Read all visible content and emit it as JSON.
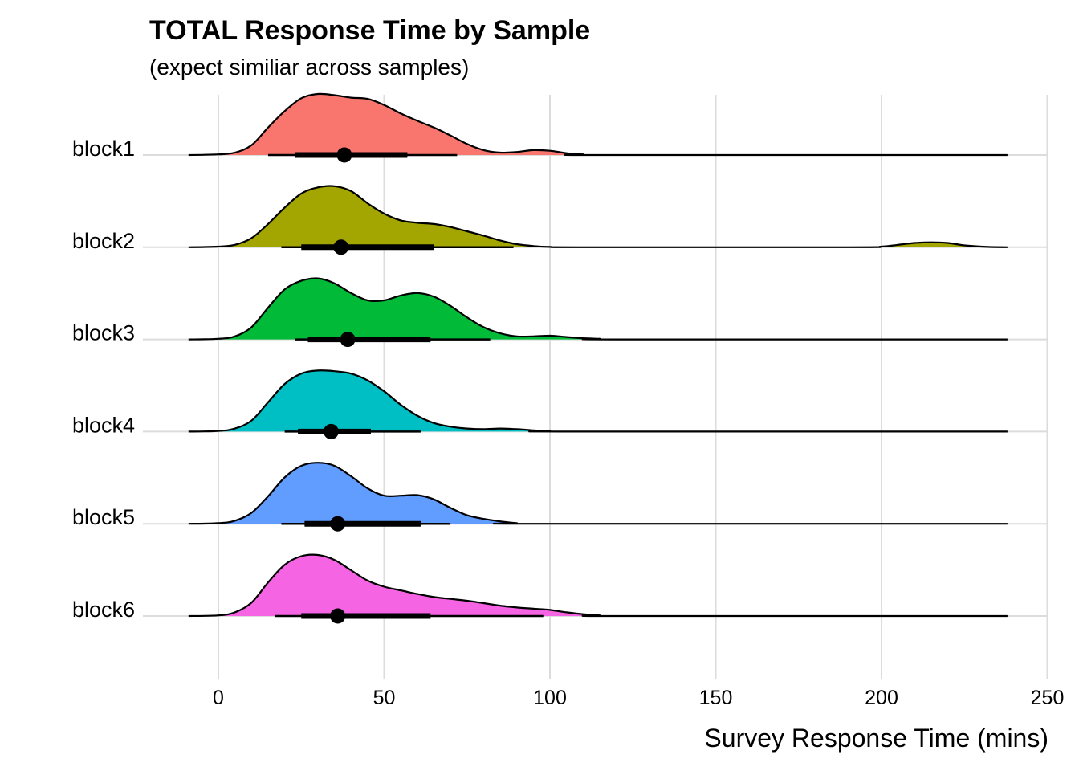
{
  "chart_data": {
    "type": "ridgeline",
    "title": "TOTAL Response Time by Sample",
    "subtitle": "(expect similiar across samples)",
    "xlabel": "Survey Response Time (mins)",
    "ylabel": "",
    "xlim": [
      -9,
      250
    ],
    "x_ticks": [
      0,
      50,
      100,
      150,
      200,
      250
    ],
    "x_tick_labels": [
      "0",
      "50",
      "100",
      "150",
      "200",
      "250"
    ],
    "grid": true,
    "legend": "none",
    "range_extent": [
      -9,
      238
    ],
    "series": [
      {
        "name": "block1",
        "color": "#F8766D",
        "density": [
          [
            -9,
            0
          ],
          [
            0,
            0.01
          ],
          [
            5,
            0.04
          ],
          [
            10,
            0.16
          ],
          [
            15,
            0.45
          ],
          [
            20,
            0.72
          ],
          [
            25,
            0.93
          ],
          [
            30,
            1.0
          ],
          [
            35,
            0.98
          ],
          [
            40,
            0.94
          ],
          [
            45,
            0.92
          ],
          [
            50,
            0.82
          ],
          [
            55,
            0.68
          ],
          [
            60,
            0.56
          ],
          [
            65,
            0.45
          ],
          [
            70,
            0.32
          ],
          [
            75,
            0.18
          ],
          [
            80,
            0.08
          ],
          [
            85,
            0.04
          ],
          [
            90,
            0.05
          ],
          [
            95,
            0.08
          ],
          [
            100,
            0.07
          ],
          [
            105,
            0.03
          ],
          [
            110,
            0.01
          ],
          [
            115,
            0
          ],
          [
            238,
            0
          ]
        ],
        "median": 38,
        "inner": [
          23,
          57
        ],
        "outer": [
          15,
          72
        ]
      },
      {
        "name": "block2",
        "color": "#A3A500",
        "density": [
          [
            -9,
            0
          ],
          [
            0,
            0.01
          ],
          [
            5,
            0.04
          ],
          [
            10,
            0.15
          ],
          [
            15,
            0.38
          ],
          [
            20,
            0.65
          ],
          [
            25,
            0.88
          ],
          [
            30,
            0.98
          ],
          [
            35,
            1.0
          ],
          [
            40,
            0.92
          ],
          [
            45,
            0.72
          ],
          [
            50,
            0.55
          ],
          [
            55,
            0.44
          ],
          [
            60,
            0.4
          ],
          [
            65,
            0.38
          ],
          [
            70,
            0.33
          ],
          [
            75,
            0.26
          ],
          [
            80,
            0.19
          ],
          [
            85,
            0.11
          ],
          [
            90,
            0.05
          ],
          [
            95,
            0.02
          ],
          [
            100,
            0.005
          ],
          [
            110,
            0
          ],
          [
            190,
            0
          ],
          [
            200,
            0.01
          ],
          [
            205,
            0.04
          ],
          [
            210,
            0.07
          ],
          [
            215,
            0.08
          ],
          [
            220,
            0.07
          ],
          [
            225,
            0.03
          ],
          [
            232,
            0.005
          ],
          [
            238,
            0
          ]
        ],
        "median": 37,
        "inner": [
          25,
          65
        ],
        "outer": [
          19,
          89
        ]
      },
      {
        "name": "block3",
        "color": "#00BA38",
        "density": [
          [
            -9,
            0
          ],
          [
            0,
            0.01
          ],
          [
            5,
            0.05
          ],
          [
            10,
            0.2
          ],
          [
            15,
            0.52
          ],
          [
            20,
            0.82
          ],
          [
            25,
            0.96
          ],
          [
            30,
            1.0
          ],
          [
            35,
            0.92
          ],
          [
            40,
            0.76
          ],
          [
            45,
            0.64
          ],
          [
            50,
            0.64
          ],
          [
            55,
            0.72
          ],
          [
            60,
            0.76
          ],
          [
            65,
            0.7
          ],
          [
            70,
            0.55
          ],
          [
            75,
            0.36
          ],
          [
            80,
            0.2
          ],
          [
            85,
            0.1
          ],
          [
            90,
            0.05
          ],
          [
            95,
            0.05
          ],
          [
            100,
            0.06
          ],
          [
            105,
            0.04
          ],
          [
            110,
            0.02
          ],
          [
            115,
            0.01
          ],
          [
            120,
            0
          ],
          [
            238,
            0
          ]
        ],
        "median": 39,
        "inner": [
          27,
          64
        ],
        "outer": [
          23,
          82
        ]
      },
      {
        "name": "block4",
        "color": "#00BFC4",
        "density": [
          [
            -9,
            0
          ],
          [
            0,
            0.01
          ],
          [
            5,
            0.05
          ],
          [
            10,
            0.18
          ],
          [
            15,
            0.48
          ],
          [
            20,
            0.78
          ],
          [
            25,
            0.95
          ],
          [
            30,
            1.0
          ],
          [
            35,
            0.99
          ],
          [
            40,
            0.95
          ],
          [
            45,
            0.84
          ],
          [
            50,
            0.66
          ],
          [
            55,
            0.44
          ],
          [
            60,
            0.26
          ],
          [
            65,
            0.14
          ],
          [
            70,
            0.08
          ],
          [
            75,
            0.05
          ],
          [
            80,
            0.04
          ],
          [
            85,
            0.05
          ],
          [
            90,
            0.04
          ],
          [
            95,
            0.02
          ],
          [
            100,
            0.005
          ],
          [
            105,
            0
          ],
          [
            238,
            0
          ]
        ],
        "median": 34,
        "inner": [
          24,
          46
        ],
        "outer": [
          20,
          61
        ]
      },
      {
        "name": "block5",
        "color": "#619CFF",
        "density": [
          [
            -9,
            0
          ],
          [
            0,
            0.01
          ],
          [
            5,
            0.05
          ],
          [
            10,
            0.18
          ],
          [
            15,
            0.45
          ],
          [
            20,
            0.76
          ],
          [
            25,
            0.95
          ],
          [
            30,
            1.0
          ],
          [
            35,
            0.95
          ],
          [
            40,
            0.78
          ],
          [
            45,
            0.58
          ],
          [
            50,
            0.46
          ],
          [
            55,
            0.46
          ],
          [
            60,
            0.47
          ],
          [
            65,
            0.4
          ],
          [
            70,
            0.26
          ],
          [
            75,
            0.14
          ],
          [
            80,
            0.08
          ],
          [
            85,
            0.04
          ],
          [
            90,
            0.01
          ],
          [
            95,
            0
          ],
          [
            238,
            0
          ]
        ],
        "median": 36,
        "inner": [
          26,
          61
        ],
        "outer": [
          19,
          70
        ]
      },
      {
        "name": "block6",
        "color": "#F564E3",
        "density": [
          [
            -9,
            0
          ],
          [
            0,
            0.01
          ],
          [
            5,
            0.06
          ],
          [
            10,
            0.22
          ],
          [
            15,
            0.55
          ],
          [
            20,
            0.84
          ],
          [
            25,
            0.98
          ],
          [
            30,
            1.0
          ],
          [
            35,
            0.92
          ],
          [
            40,
            0.75
          ],
          [
            45,
            0.58
          ],
          [
            50,
            0.48
          ],
          [
            55,
            0.42
          ],
          [
            60,
            0.36
          ],
          [
            65,
            0.31
          ],
          [
            70,
            0.28
          ],
          [
            75,
            0.25
          ],
          [
            80,
            0.21
          ],
          [
            85,
            0.17
          ],
          [
            90,
            0.14
          ],
          [
            95,
            0.12
          ],
          [
            100,
            0.1
          ],
          [
            105,
            0.06
          ],
          [
            110,
            0.03
          ],
          [
            115,
            0.01
          ],
          [
            120,
            0
          ],
          [
            238,
            0
          ]
        ],
        "median": 36,
        "inner": [
          25,
          64
        ],
        "outer": [
          17,
          98
        ]
      }
    ]
  }
}
